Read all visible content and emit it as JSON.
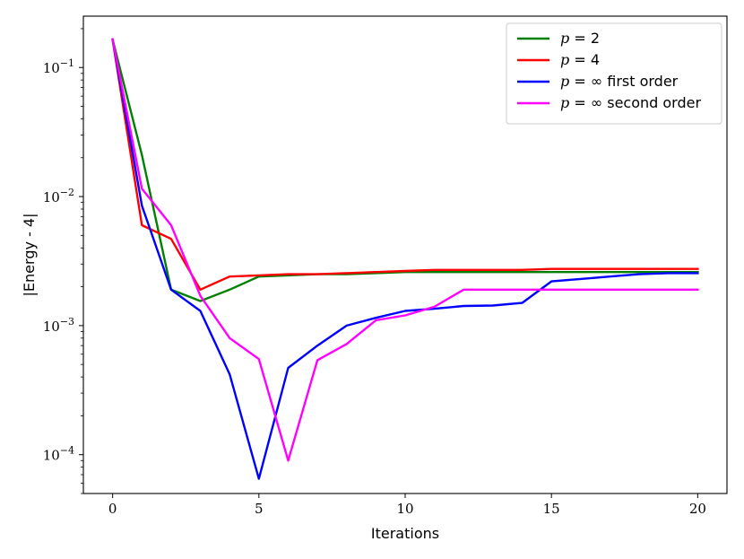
{
  "chart_data": {
    "type": "line",
    "xlabel": "Iterations",
    "ylabel": "|Energy - 4|",
    "yscale": "log",
    "xlim": [
      -1,
      21
    ],
    "ylim": [
      5e-05,
      0.25
    ],
    "grid": false,
    "legend_position": "top-right",
    "xticks": [
      0,
      5,
      10,
      15,
      20
    ],
    "yticks": [
      {
        "value": 0.0001,
        "label": "10",
        "exp": "−4"
      },
      {
        "value": 0.001,
        "label": "10",
        "exp": "−3"
      },
      {
        "value": 0.01,
        "label": "10",
        "exp": "−2"
      },
      {
        "value": 0.1,
        "label": "10",
        "exp": "−1"
      }
    ],
    "x": [
      0,
      1,
      2,
      3,
      4,
      5,
      6,
      7,
      8,
      9,
      10,
      11,
      12,
      13,
      14,
      15,
      16,
      17,
      18,
      19,
      20
    ],
    "series": [
      {
        "name": "p = 2",
        "legend_math": "p",
        "legend_rest": " = 2",
        "color": "#008000",
        "x": [
          0,
          1,
          2,
          3,
          4,
          5,
          6,
          7,
          8,
          9,
          10,
          11,
          12,
          13,
          14,
          15,
          16,
          17,
          18,
          19,
          20
        ],
        "values": [
          0.165,
          0.021,
          0.0019,
          0.00155,
          0.0019,
          0.0024,
          0.00245,
          0.0025,
          0.0025,
          0.00255,
          0.0026,
          0.0026,
          0.0026,
          0.0026,
          0.0026,
          0.0026,
          0.0026,
          0.0026,
          0.0026,
          0.0026,
          0.0026
        ]
      },
      {
        "name": "p = 4",
        "legend_math": "p",
        "legend_rest": " = 4",
        "color": "#ff0000",
        "x": [
          0,
          1,
          2,
          3,
          4,
          5,
          6,
          7,
          8,
          9,
          10,
          11,
          12,
          13,
          14,
          15,
          16,
          17,
          18,
          19,
          20
        ],
        "values": [
          0.165,
          0.006,
          0.0047,
          0.0019,
          0.0024,
          0.00245,
          0.0025,
          0.0025,
          0.00255,
          0.0026,
          0.00265,
          0.0027,
          0.0027,
          0.0027,
          0.0027,
          0.00275,
          0.00275,
          0.00275,
          0.00275,
          0.00275,
          0.00275
        ]
      },
      {
        "name": "p = ∞ first order",
        "legend_math": "p",
        "legend_rest": " = ∞ first order",
        "color": "#0000ff",
        "x": [
          0,
          1,
          2,
          3,
          4,
          5,
          6,
          7,
          8,
          9,
          10,
          11,
          12,
          13,
          14,
          15,
          16,
          17,
          18,
          19,
          20
        ],
        "values": [
          0.165,
          0.0085,
          0.0019,
          0.0013,
          0.00042,
          6.5e-05,
          0.00047,
          0.0007,
          0.001,
          0.00115,
          0.0013,
          0.00135,
          0.00142,
          0.00143,
          0.0015,
          0.0022,
          0.0023,
          0.0024,
          0.0025,
          0.00255,
          0.00255
        ]
      },
      {
        "name": "p = ∞ second order",
        "legend_math": "p",
        "legend_rest": " = ∞ second order",
        "color": "#ff00ff",
        "x": [
          0,
          1,
          2,
          3,
          4,
          5,
          6,
          7,
          8,
          9,
          10,
          11,
          12,
          13,
          14,
          15,
          16,
          17,
          18,
          19,
          20
        ],
        "values": [
          0.165,
          0.0115,
          0.006,
          0.0017,
          0.0008,
          0.00055,
          9e-05,
          0.00054,
          0.00072,
          0.0011,
          0.0012,
          0.0014,
          0.0019,
          0.0019,
          0.0019,
          0.0019,
          0.0019,
          0.0019,
          0.0019,
          0.0019,
          0.0019
        ]
      }
    ]
  }
}
